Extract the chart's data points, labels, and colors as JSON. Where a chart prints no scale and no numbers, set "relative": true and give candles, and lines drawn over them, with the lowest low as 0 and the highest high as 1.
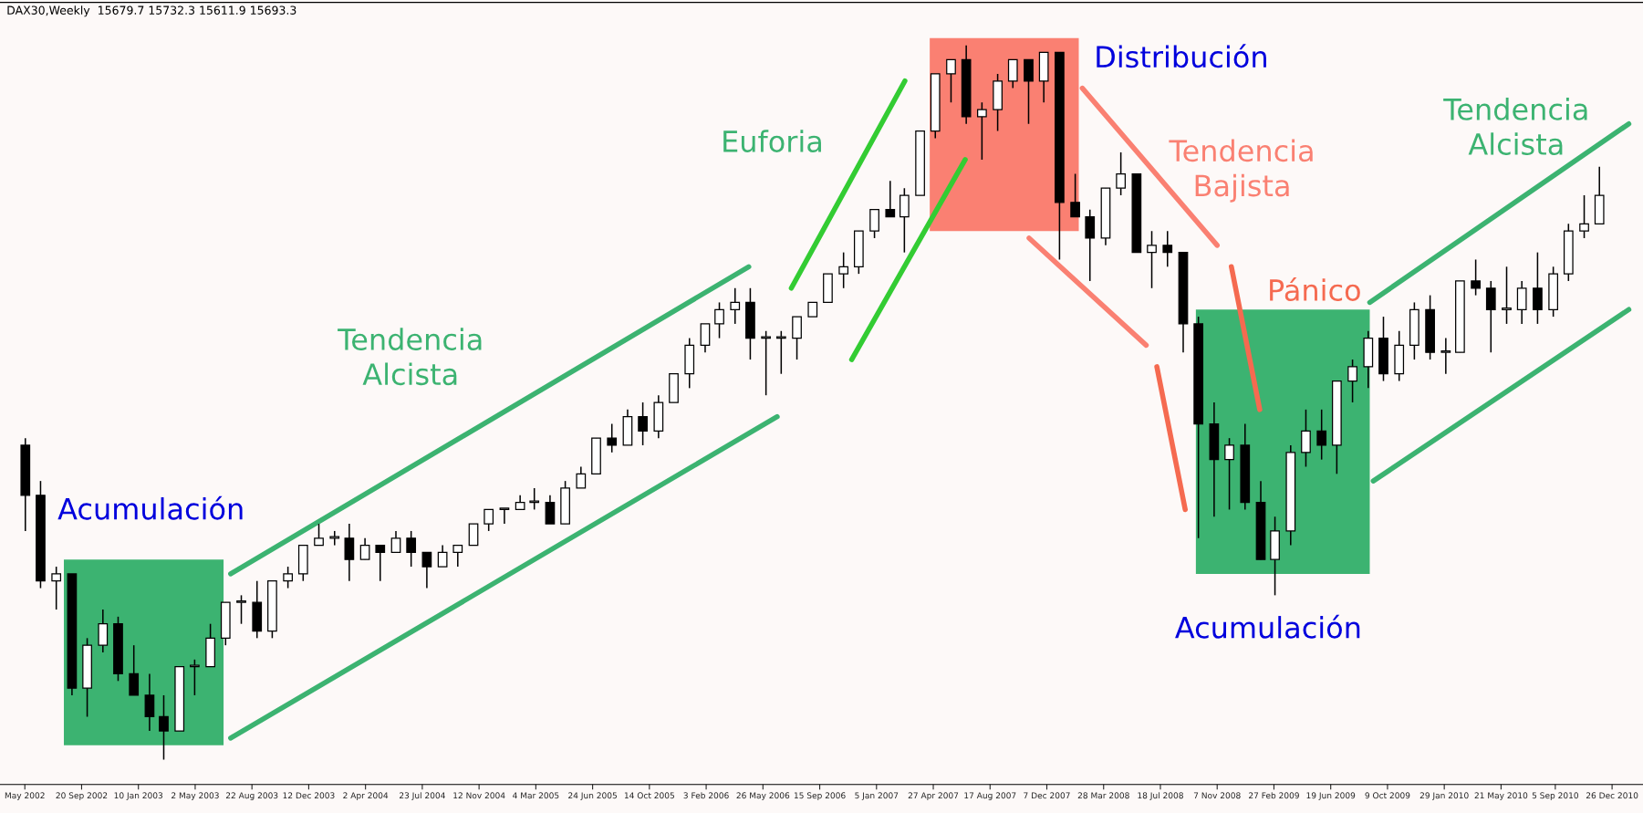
{
  "chart_data": {
    "type": "candlestick",
    "relative": true,
    "x": [
      "2002-06",
      "2002-07",
      "2002-08",
      "2002-09",
      "2002-10",
      "2002-11",
      "2002-12",
      "2003-01",
      "2003-02",
      "2003-03",
      "2003-04",
      "2003-05",
      "2003-06",
      "2003-07",
      "2003-08",
      "2003-09",
      "2003-10",
      "2003-11",
      "2003-12",
      "2004-01",
      "2004-02",
      "2004-03",
      "2004-04",
      "2004-05",
      "2004-06",
      "2004-07",
      "2004-08",
      "2004-09",
      "2004-10",
      "2004-11",
      "2004-12",
      "2005-01",
      "2005-02",
      "2005-03",
      "2005-04",
      "2005-05",
      "2005-06",
      "2005-07",
      "2005-08",
      "2005-09",
      "2005-10",
      "2005-11",
      "2005-12",
      "2006-01",
      "2006-02",
      "2006-03",
      "2006-04",
      "2006-05",
      "2006-06",
      "2006-07",
      "2006-08",
      "2006-09",
      "2006-10",
      "2006-11",
      "2006-12",
      "2007-01",
      "2007-02",
      "2007-03",
      "2007-04",
      "2007-05",
      "2007-06",
      "2007-07",
      "2007-08",
      "2007-09",
      "2007-10",
      "2007-11",
      "2007-12",
      "2008-01",
      "2008-02",
      "2008-03",
      "2008-04",
      "2008-05",
      "2008-06",
      "2008-07",
      "2008-08",
      "2008-09",
      "2008-10",
      "2008-11",
      "2008-12",
      "2009-01",
      "2009-02",
      "2009-03",
      "2009-04",
      "2009-05",
      "2009-06",
      "2009-07",
      "2009-08",
      "2009-09",
      "2009-10",
      "2009-11",
      "2009-12",
      "2010-01",
      "2010-02",
      "2010-03",
      "2010-04",
      "2010-05",
      "2010-06",
      "2010-07",
      "2010-08",
      "2010-09",
      "2010-10",
      "2010-11",
      "2010-12"
    ],
    "ohlc": [
      [
        0.44,
        0.45,
        0.32,
        0.37
      ],
      [
        0.37,
        0.39,
        0.24,
        0.25
      ],
      [
        0.25,
        0.27,
        0.21,
        0.26
      ],
      [
        0.26,
        0.26,
        0.09,
        0.1
      ],
      [
        0.1,
        0.17,
        0.06,
        0.16
      ],
      [
        0.16,
        0.21,
        0.15,
        0.19
      ],
      [
        0.19,
        0.2,
        0.11,
        0.12
      ],
      [
        0.12,
        0.16,
        0.09,
        0.09
      ],
      [
        0.09,
        0.12,
        0.04,
        0.06
      ],
      [
        0.06,
        0.09,
        0.0,
        0.04
      ],
      [
        0.04,
        0.13,
        0.04,
        0.13
      ],
      [
        0.13,
        0.14,
        0.09,
        0.13
      ],
      [
        0.13,
        0.19,
        0.13,
        0.17
      ],
      [
        0.17,
        0.22,
        0.16,
        0.22
      ],
      [
        0.22,
        0.23,
        0.19,
        0.22
      ],
      [
        0.22,
        0.25,
        0.17,
        0.18
      ],
      [
        0.18,
        0.25,
        0.17,
        0.25
      ],
      [
        0.25,
        0.27,
        0.24,
        0.26
      ],
      [
        0.26,
        0.3,
        0.25,
        0.3
      ],
      [
        0.3,
        0.33,
        0.3,
        0.31
      ],
      [
        0.31,
        0.32,
        0.3,
        0.31
      ],
      [
        0.31,
        0.33,
        0.25,
        0.28
      ],
      [
        0.28,
        0.31,
        0.28,
        0.3
      ],
      [
        0.3,
        0.3,
        0.25,
        0.29
      ],
      [
        0.29,
        0.32,
        0.29,
        0.31
      ],
      [
        0.31,
        0.32,
        0.27,
        0.29
      ],
      [
        0.29,
        0.29,
        0.24,
        0.27
      ],
      [
        0.27,
        0.3,
        0.27,
        0.29
      ],
      [
        0.29,
        0.3,
        0.27,
        0.3
      ],
      [
        0.3,
        0.33,
        0.3,
        0.33
      ],
      [
        0.33,
        0.35,
        0.32,
        0.35
      ],
      [
        0.35,
        0.35,
        0.33,
        0.35
      ],
      [
        0.35,
        0.37,
        0.35,
        0.36
      ],
      [
        0.36,
        0.38,
        0.35,
        0.36
      ],
      [
        0.36,
        0.37,
        0.33,
        0.33
      ],
      [
        0.33,
        0.39,
        0.33,
        0.38
      ],
      [
        0.38,
        0.41,
        0.38,
        0.4
      ],
      [
        0.4,
        0.45,
        0.4,
        0.45
      ],
      [
        0.45,
        0.47,
        0.43,
        0.44
      ],
      [
        0.44,
        0.49,
        0.44,
        0.48
      ],
      [
        0.48,
        0.5,
        0.44,
        0.46
      ],
      [
        0.46,
        0.51,
        0.45,
        0.5
      ],
      [
        0.5,
        0.54,
        0.5,
        0.54
      ],
      [
        0.54,
        0.59,
        0.52,
        0.58
      ],
      [
        0.58,
        0.61,
        0.57,
        0.61
      ],
      [
        0.61,
        0.64,
        0.59,
        0.63
      ],
      [
        0.63,
        0.66,
        0.61,
        0.64
      ],
      [
        0.64,
        0.66,
        0.56,
        0.59
      ],
      [
        0.59,
        0.6,
        0.51,
        0.59
      ],
      [
        0.59,
        0.6,
        0.54,
        0.59
      ],
      [
        0.59,
        0.62,
        0.56,
        0.62
      ],
      [
        0.62,
        0.64,
        0.62,
        0.64
      ],
      [
        0.64,
        0.68,
        0.64,
        0.68
      ],
      [
        0.68,
        0.71,
        0.66,
        0.69
      ],
      [
        0.69,
        0.74,
        0.68,
        0.74
      ],
      [
        0.74,
        0.77,
        0.73,
        0.77
      ],
      [
        0.77,
        0.81,
        0.76,
        0.76
      ],
      [
        0.76,
        0.8,
        0.71,
        0.79
      ],
      [
        0.79,
        0.88,
        0.79,
        0.88
      ],
      [
        0.88,
        0.96,
        0.87,
        0.96
      ],
      [
        0.96,
        0.98,
        0.92,
        0.98
      ],
      [
        0.98,
        1.0,
        0.89,
        0.9
      ],
      [
        0.9,
        0.92,
        0.84,
        0.91
      ],
      [
        0.91,
        0.96,
        0.88,
        0.95
      ],
      [
        0.95,
        0.98,
        0.94,
        0.98
      ],
      [
        0.98,
        0.98,
        0.89,
        0.95
      ],
      [
        0.95,
        0.99,
        0.92,
        0.99
      ],
      [
        0.99,
        0.99,
        0.7,
        0.78
      ],
      [
        0.78,
        0.82,
        0.76,
        0.76
      ],
      [
        0.76,
        0.77,
        0.67,
        0.73
      ],
      [
        0.73,
        0.8,
        0.72,
        0.8
      ],
      [
        0.8,
        0.85,
        0.79,
        0.82
      ],
      [
        0.82,
        0.82,
        0.71,
        0.71
      ],
      [
        0.71,
        0.74,
        0.66,
        0.72
      ],
      [
        0.72,
        0.74,
        0.69,
        0.71
      ],
      [
        0.71,
        0.71,
        0.57,
        0.61
      ],
      [
        0.61,
        0.62,
        0.31,
        0.47
      ],
      [
        0.47,
        0.5,
        0.34,
        0.42
      ],
      [
        0.42,
        0.45,
        0.35,
        0.44
      ],
      [
        0.44,
        0.47,
        0.35,
        0.36
      ],
      [
        0.36,
        0.39,
        0.28,
        0.28
      ],
      [
        0.28,
        0.34,
        0.23,
        0.32
      ],
      [
        0.32,
        0.44,
        0.3,
        0.43
      ],
      [
        0.43,
        0.49,
        0.41,
        0.46
      ],
      [
        0.46,
        0.49,
        0.42,
        0.44
      ],
      [
        0.44,
        0.53,
        0.4,
        0.53
      ],
      [
        0.53,
        0.56,
        0.5,
        0.55
      ],
      [
        0.55,
        0.6,
        0.52,
        0.59
      ],
      [
        0.59,
        0.62,
        0.53,
        0.54
      ],
      [
        0.54,
        0.6,
        0.53,
        0.58
      ],
      [
        0.58,
        0.64,
        0.56,
        0.63
      ],
      [
        0.63,
        0.65,
        0.56,
        0.57
      ],
      [
        0.57,
        0.59,
        0.54,
        0.57
      ],
      [
        0.57,
        0.67,
        0.57,
        0.67
      ],
      [
        0.67,
        0.7,
        0.65,
        0.66
      ],
      [
        0.66,
        0.67,
        0.57,
        0.63
      ],
      [
        0.63,
        0.69,
        0.61,
        0.63
      ],
      [
        0.63,
        0.67,
        0.61,
        0.66
      ],
      [
        0.66,
        0.71,
        0.61,
        0.63
      ],
      [
        0.63,
        0.69,
        0.62,
        0.68
      ],
      [
        0.68,
        0.75,
        0.67,
        0.74
      ],
      [
        0.74,
        0.79,
        0.73,
        0.75
      ],
      [
        0.75,
        0.83,
        0.75,
        0.79
      ]
    ],
    "series": [
      {
        "type": "line",
        "x": [
          "2003-07-11",
          "2006-04-28"
        ],
        "values": [
          0.26,
          0.69
        ],
        "color": "#3cb371"
      },
      {
        "type": "line",
        "x": [
          "2003-07-11",
          "2006-06-23"
        ],
        "values": [
          0.03,
          0.48
        ],
        "color": "#3cb371"
      },
      {
        "type": "line",
        "x": [
          "2006-07-21",
          "2007-03-02"
        ],
        "values": [
          0.66,
          0.95
        ],
        "color": "#33cc33"
      },
      {
        "type": "line",
        "x": [
          "2006-11-17",
          "2007-06-29"
        ],
        "values": [
          0.56,
          0.84
        ],
        "color": "#33cc33"
      },
      {
        "type": "line",
        "x": [
          "2008-02-15",
          "2008-11-07"
        ],
        "values": [
          0.94,
          0.72
        ],
        "color": "#fa8072"
      },
      {
        "type": "line",
        "x": [
          "2007-11-02",
          "2008-06-20"
        ],
        "values": [
          0.73,
          0.58
        ],
        "color": "#fa8072"
      },
      {
        "type": "line",
        "x": [
          "2008-12-05",
          "2009-01-30"
        ],
        "values": [
          0.69,
          0.49
        ],
        "color": "#f56a50"
      },
      {
        "type": "line",
        "x": [
          "2008-07-11",
          "2008-09-05"
        ],
        "values": [
          0.55,
          0.35
        ],
        "color": "#f56a50"
      },
      {
        "type": "line",
        "x": [
          "2009-09-04",
          "2011-01-28"
        ],
        "values": [
          0.64,
          0.89
        ],
        "color": "#3cb371"
      },
      {
        "type": "line",
        "x": [
          "2009-09-11",
          "2011-01-28"
        ],
        "values": [
          0.39,
          0.63
        ],
        "color": "#3cb371"
      }
    ],
    "bands": [
      {
        "axis": "x",
        "from": "2002-08-16",
        "to": "2003-06-27",
        "color": "#3cb371"
      },
      {
        "axis": "x",
        "from": "2007-04-20",
        "to": "2008-02-08",
        "color": "#fa8072"
      },
      {
        "axis": "x",
        "from": "2008-09-26",
        "to": "2009-09-04",
        "color": "#3cb371"
      }
    ],
    "annotations": [
      "DAX30,Weekly  15679.7 15732.3 15611.9 15693.3",
      "Acumulación",
      "Tendencia\nAlcista",
      "Euforia",
      "Distribución",
      "Tendencia\nBajista",
      "Pánico",
      "Acumulación",
      "Tendencia\nAlcista"
    ],
    "xlim": [
      "2002-04-12",
      "2011-02-25"
    ],
    "xticks": [
      {
        "value": "2002-05-31",
        "label": "May 2002"
      },
      {
        "value": "2002-09-20",
        "label": "20 Sep 2002"
      },
      {
        "value": "2003-01-10",
        "label": "10 Jan 2003"
      },
      {
        "value": "2003-05-02",
        "label": "2 May 2003"
      },
      {
        "value": "2003-08-22",
        "label": "22 Aug 2003"
      },
      {
        "value": "2003-12-12",
        "label": "12 Dec 2003"
      },
      {
        "value": "2004-04-02",
        "label": "2 Apr 2004"
      },
      {
        "value": "2004-07-23",
        "label": "23 Jul 2004"
      },
      {
        "value": "2004-11-12",
        "label": "12 Nov 2004"
      },
      {
        "value": "2005-03-04",
        "label": "4 Mar 2005"
      },
      {
        "value": "2005-06-24",
        "label": "24 Jun 2005"
      },
      {
        "value": "2005-10-14",
        "label": "14 Oct 2005"
      },
      {
        "value": "2006-02-03",
        "label": "3 Feb 2006"
      },
      {
        "value": "2006-05-26",
        "label": "26 May 2006"
      },
      {
        "value": "2006-09-15",
        "label": "15 Sep 2006"
      },
      {
        "value": "2007-01-05",
        "label": "5 Jan 2007"
      },
      {
        "value": "2007-04-27",
        "label": "27 Apr 2007"
      },
      {
        "value": "2007-08-17",
        "label": "17 Aug 2007"
      },
      {
        "value": "2007-12-07",
        "label": "7 Dec 2007"
      },
      {
        "value": "2008-03-28",
        "label": "28 Mar 2008"
      },
      {
        "value": "2008-07-18",
        "label": "18 Jul 2008"
      },
      {
        "value": "2008-11-07",
        "label": "7 Nov 2008"
      },
      {
        "value": "2009-02-27",
        "label": "27 Feb 2009"
      },
      {
        "value": "2009-06-19",
        "label": "19 Jun 2009"
      },
      {
        "value": "2009-10-09",
        "label": "9 Oct 2009"
      },
      {
        "value": "2010-01-29",
        "label": "29 Jan 2010"
      },
      {
        "value": "2010-05-21",
        "label": "21 May 2010"
      },
      {
        "value": "2010-09-05",
        "label": "5 Sep 2010"
      },
      {
        "value": "2010-12-26",
        "label": "26 Dec 2010"
      }
    ],
    "grid": false
  }
}
